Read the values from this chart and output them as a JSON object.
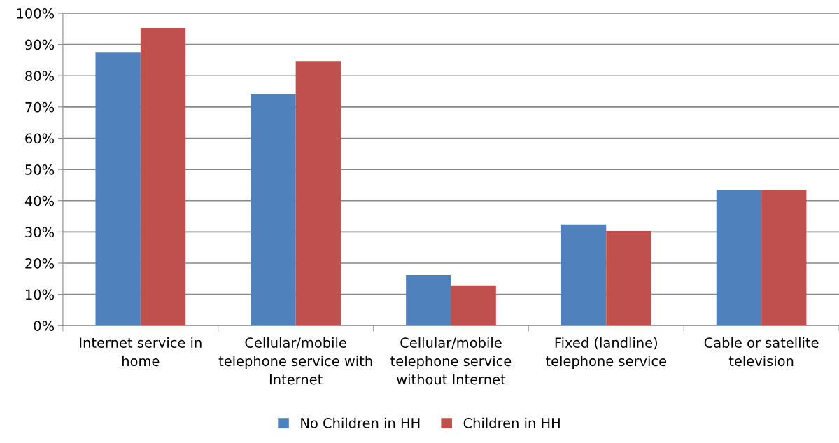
{
  "chart_data": {
    "type": "bar",
    "categories": [
      "Internet service in home",
      "Cellular/mobile telephone service with Internet",
      "Cellular/mobile telephone service without Internet",
      "Fixed (landline) telephone service",
      "Cable or satellite television"
    ],
    "series": [
      {
        "name": "No Children in HH",
        "color": "#4f81bd",
        "values": [
          87.4,
          74.1,
          16.2,
          32.4,
          43.4
        ]
      },
      {
        "name": "Children in HH",
        "color": "#c0504d",
        "values": [
          95.3,
          84.7,
          12.9,
          30.3,
          43.5
        ]
      }
    ],
    "ylim": [
      0,
      100
    ],
    "yticks": [
      {
        "value": 0,
        "label": "0%"
      },
      {
        "value": 10,
        "label": "10%"
      },
      {
        "value": 20,
        "label": "20%"
      },
      {
        "value": 30,
        "label": "30%"
      },
      {
        "value": 40,
        "label": "40%"
      },
      {
        "value": 50,
        "label": "50%"
      },
      {
        "value": 60,
        "label": "60%"
      },
      {
        "value": 70,
        "label": "70%"
      },
      {
        "value": 80,
        "label": "80%"
      },
      {
        "value": 90,
        "label": "90%"
      },
      {
        "value": 100,
        "label": "100%"
      }
    ],
    "grid": "y",
    "legend": "bottom"
  }
}
